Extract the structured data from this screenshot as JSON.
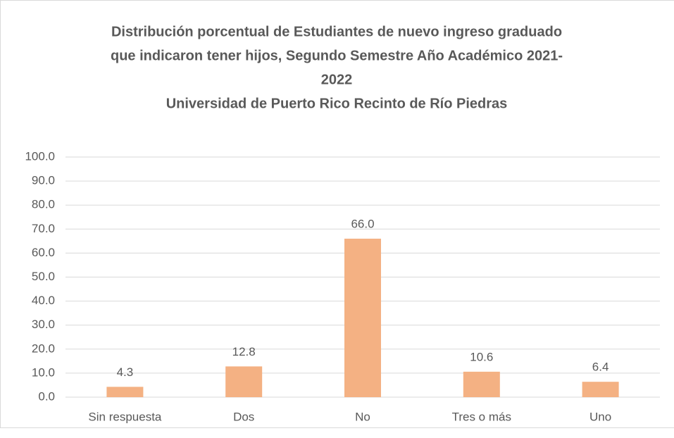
{
  "chart_data": {
    "type": "bar",
    "title": [
      "Distribución porcentual de Estudiantes de nuevo ingreso graduado",
      "que indicaron tener hijos, Segundo Semestre Año Académico 2021-",
      "2022",
      "Universidad de Puerto Rico Recinto de Río Piedras"
    ],
    "categories": [
      "Sin respuesta",
      "Dos",
      "No",
      "Tres o más",
      "Uno"
    ],
    "values": [
      4.3,
      12.8,
      66.0,
      10.6,
      6.4
    ],
    "value_labels": [
      "4.3",
      "12.8",
      "66.0",
      "10.6",
      "6.4"
    ],
    "color": "#f4b183",
    "ylim": [
      0,
      100
    ],
    "yticks": [
      {
        "value": 0,
        "label": "0.0"
      },
      {
        "value": 10,
        "label": "10.0"
      },
      {
        "value": 20,
        "label": "20.0"
      },
      {
        "value": 30,
        "label": "30.0"
      },
      {
        "value": 40,
        "label": "40.0"
      },
      {
        "value": 50,
        "label": "50.0"
      },
      {
        "value": 60,
        "label": "60.0"
      },
      {
        "value": 70,
        "label": "70.0"
      },
      {
        "value": 80,
        "label": "80.0"
      },
      {
        "value": 90,
        "label": "90.0"
      },
      {
        "value": 100,
        "label": "100.0"
      }
    ],
    "grid": true
  }
}
